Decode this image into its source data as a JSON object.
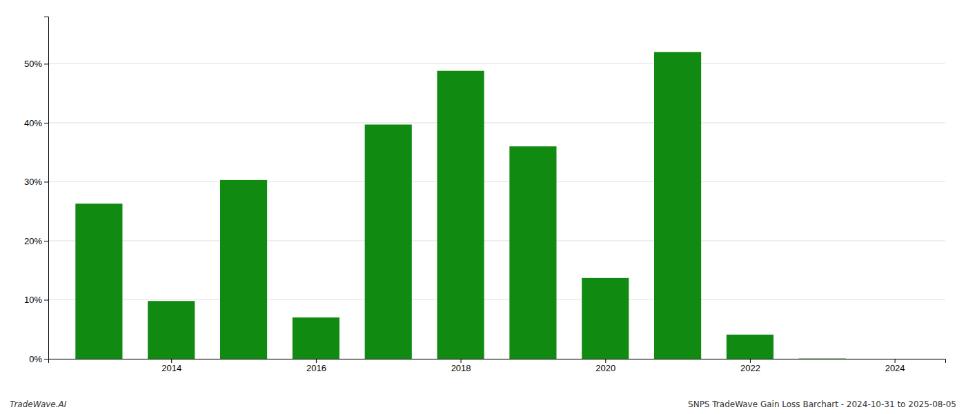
{
  "chart_data": {
    "type": "bar",
    "x": [
      2013,
      2014,
      2015,
      2016,
      2017,
      2018,
      2019,
      2020,
      2021,
      2022,
      2023
    ],
    "values": [
      26.3,
      9.8,
      30.3,
      7.0,
      39.7,
      48.8,
      36.0,
      13.7,
      52.0,
      4.1,
      0.05
    ],
    "color": "#118A11",
    "xlim": [
      2012.3,
      2024.7
    ],
    "ylim": [
      0,
      58
    ],
    "xticks": [
      2014,
      2016,
      2018,
      2020,
      2022,
      2024
    ],
    "yticks": [
      {
        "value": 0,
        "label": "0%"
      },
      {
        "value": 10,
        "label": "10%"
      },
      {
        "value": 20,
        "label": "20%"
      },
      {
        "value": 30,
        "label": "30%"
      },
      {
        "value": 40,
        "label": "40%"
      },
      {
        "value": 50,
        "label": "50%"
      }
    ],
    "grid": true,
    "annotations": [
      "TradeWave.AI",
      "SNPS TradeWave Gain Loss Barchart - 2024-10-31 to 2025-08-05"
    ]
  }
}
